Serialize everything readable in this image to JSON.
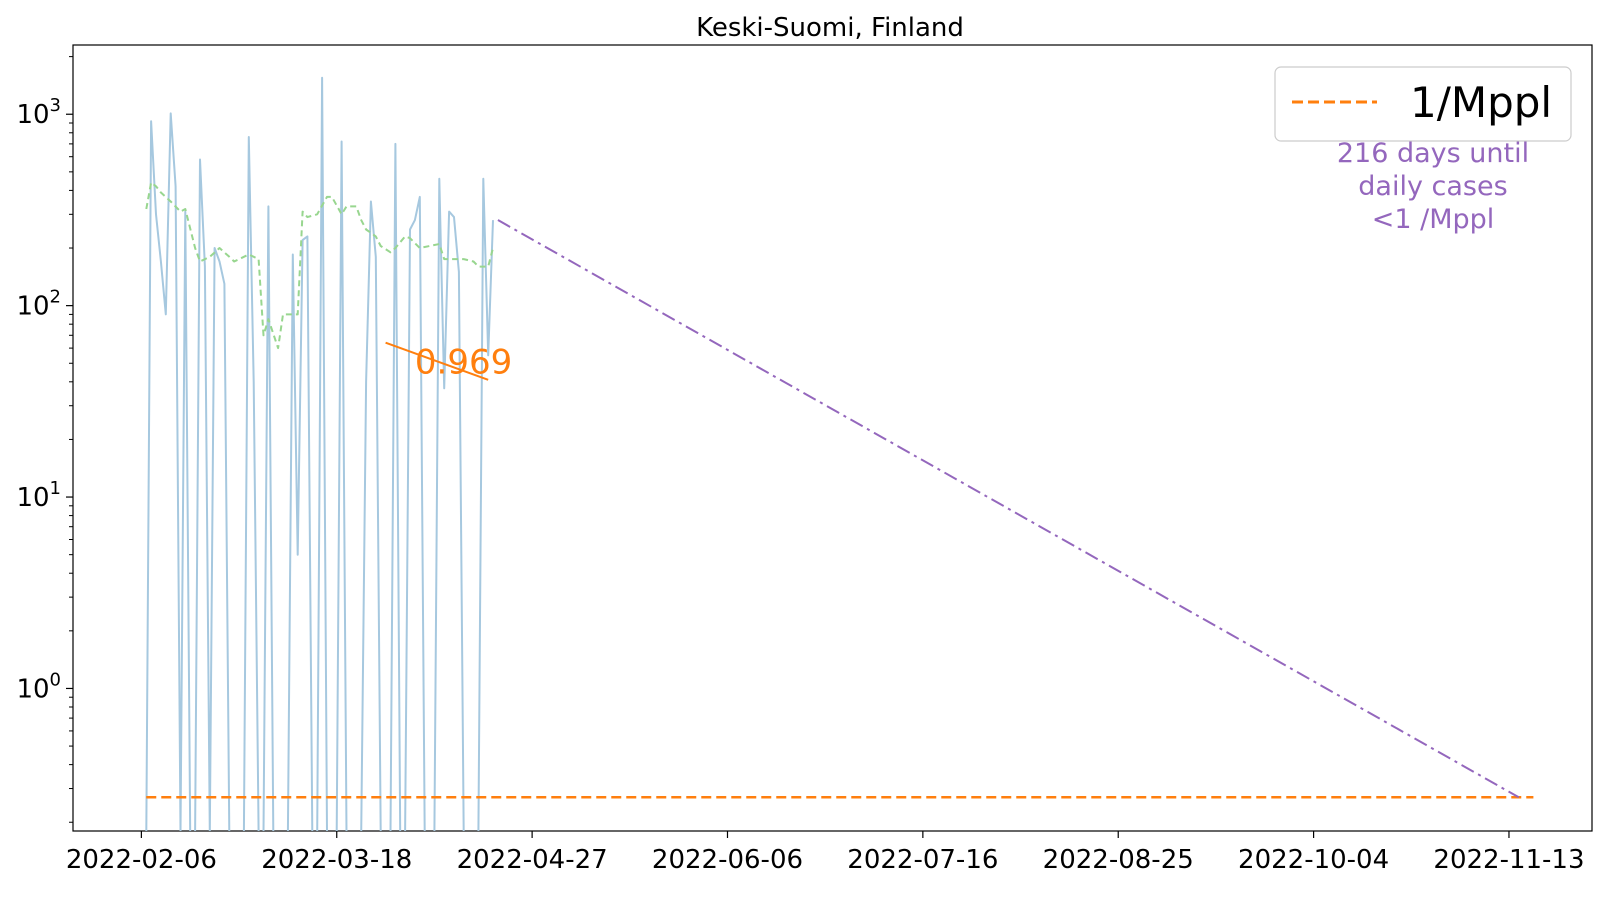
{
  "chart_data": {
    "type": "line",
    "title": "Keski-Suomi, Finland",
    "xlabel": "",
    "ylabel": "",
    "x_scale": "date",
    "y_scale": "log",
    "xlim": [
      "2022-01-23",
      "2022-11-30"
    ],
    "ylim": [
      0.18,
      2300
    ],
    "x_ticks": [
      "2022-02-06",
      "2022-03-18",
      "2022-04-27",
      "2022-06-06",
      "2022-07-16",
      "2022-08-25",
      "2022-10-04",
      "2022-11-13"
    ],
    "y_ticks": [
      {
        "value": 1,
        "base": "10",
        "exp": "0"
      },
      {
        "value": 10,
        "base": "10",
        "exp": "1"
      },
      {
        "value": 100,
        "base": "10",
        "exp": "2"
      },
      {
        "value": 1000,
        "base": "10",
        "exp": "3"
      }
    ],
    "grid": false,
    "legend": {
      "position": "top-right",
      "entries": [
        {
          "label": "1/Mppl",
          "color": "#ff7f0e",
          "dash": "dashed"
        }
      ]
    },
    "series": [
      {
        "kind": "daily",
        "color": "#a6c8df",
        "points": [
          [
            "2022-02-07",
            0.15
          ],
          [
            "2022-02-08",
            920
          ],
          [
            "2022-02-09",
            300
          ],
          [
            "2022-02-10",
            170
          ],
          [
            "2022-02-11",
            90
          ],
          [
            "2022-02-12",
            1010
          ],
          [
            "2022-02-13",
            420
          ],
          [
            "2022-02-14",
            0.15
          ],
          [
            "2022-02-15",
            310
          ],
          [
            "2022-02-16",
            0.15
          ],
          [
            "2022-02-17",
            0.15
          ],
          [
            "2022-02-18",
            580
          ],
          [
            "2022-02-19",
            160
          ],
          [
            "2022-02-20",
            0.15
          ],
          [
            "2022-02-21",
            200
          ],
          [
            "2022-02-22",
            170
          ],
          [
            "2022-02-23",
            130
          ],
          [
            "2022-02-24",
            0.15
          ],
          [
            "2022-02-25",
            0.15
          ],
          [
            "2022-02-26",
            0.15
          ],
          [
            "2022-02-27",
            0.15
          ],
          [
            "2022-02-28",
            760
          ],
          [
            "2022-03-01",
            40
          ],
          [
            "2022-03-02",
            0.15
          ],
          [
            "2022-03-03",
            0.15
          ],
          [
            "2022-03-04",
            330
          ],
          [
            "2022-03-05",
            0.15
          ],
          [
            "2022-03-06",
            0.15
          ],
          [
            "2022-03-07",
            0.15
          ],
          [
            "2022-03-08",
            0.15
          ],
          [
            "2022-03-09",
            185
          ],
          [
            "2022-03-10",
            5
          ],
          [
            "2022-03-11",
            220
          ],
          [
            "2022-03-12",
            230
          ],
          [
            "2022-03-13",
            0.15
          ],
          [
            "2022-03-14",
            0.15
          ],
          [
            "2022-03-15",
            1550
          ],
          [
            "2022-03-16",
            0.15
          ],
          [
            "2022-03-17",
            0.15
          ],
          [
            "2022-03-18",
            0.15
          ],
          [
            "2022-03-19",
            720
          ],
          [
            "2022-03-20",
            0.15
          ],
          [
            "2022-03-21",
            0.15
          ],
          [
            "2022-03-22",
            0.15
          ],
          [
            "2022-03-23",
            0.15
          ],
          [
            "2022-03-24",
            40
          ],
          [
            "2022-03-25",
            350
          ],
          [
            "2022-03-26",
            180
          ],
          [
            "2022-03-27",
            0.15
          ],
          [
            "2022-03-28",
            0.15
          ],
          [
            "2022-03-29",
            0.15
          ],
          [
            "2022-03-30",
            700
          ],
          [
            "2022-03-31",
            0.15
          ],
          [
            "2022-04-01",
            0.15
          ],
          [
            "2022-04-02",
            250
          ],
          [
            "2022-04-03",
            280
          ],
          [
            "2022-04-04",
            370
          ],
          [
            "2022-04-05",
            0.15
          ],
          [
            "2022-04-06",
            0.15
          ],
          [
            "2022-04-07",
            0.15
          ],
          [
            "2022-04-08",
            460
          ],
          [
            "2022-04-09",
            37
          ],
          [
            "2022-04-10",
            310
          ],
          [
            "2022-04-11",
            290
          ],
          [
            "2022-04-12",
            150
          ],
          [
            "2022-04-13",
            0.15
          ],
          [
            "2022-04-14",
            0.15
          ],
          [
            "2022-04-15",
            0.15
          ],
          [
            "2022-04-16",
            0.15
          ],
          [
            "2022-04-17",
            460
          ],
          [
            "2022-04-18",
            55
          ],
          [
            "2022-04-19",
            280
          ]
        ]
      },
      {
        "kind": "rolling-average",
        "color": "#98d68f",
        "points": [
          [
            "2022-02-07",
            320
          ],
          [
            "2022-02-08",
            440
          ],
          [
            "2022-02-09",
            420
          ],
          [
            "2022-02-10",
            390
          ],
          [
            "2022-02-12",
            350
          ],
          [
            "2022-02-14",
            310
          ],
          [
            "2022-02-15",
            320
          ],
          [
            "2022-02-17",
            200
          ],
          [
            "2022-02-18",
            170
          ],
          [
            "2022-02-20",
            180
          ],
          [
            "2022-02-22",
            200
          ],
          [
            "2022-02-24",
            180
          ],
          [
            "2022-02-25",
            170
          ],
          [
            "2022-02-27",
            180
          ],
          [
            "2022-02-28",
            185
          ],
          [
            "2022-03-02",
            175
          ],
          [
            "2022-03-03",
            70
          ],
          [
            "2022-03-04",
            85
          ],
          [
            "2022-03-06",
            60
          ],
          [
            "2022-03-07",
            90
          ],
          [
            "2022-03-09",
            90
          ],
          [
            "2022-03-10",
            90
          ],
          [
            "2022-03-11",
            310
          ],
          [
            "2022-03-12",
            290
          ],
          [
            "2022-03-14",
            300
          ],
          [
            "2022-03-16",
            370
          ],
          [
            "2022-03-17",
            370
          ],
          [
            "2022-03-19",
            300
          ],
          [
            "2022-03-20",
            330
          ],
          [
            "2022-03-22",
            330
          ],
          [
            "2022-03-23",
            280
          ],
          [
            "2022-03-24",
            250
          ],
          [
            "2022-03-26",
            230
          ],
          [
            "2022-03-27",
            205
          ],
          [
            "2022-03-29",
            190
          ],
          [
            "2022-03-30",
            200
          ],
          [
            "2022-04-01",
            230
          ],
          [
            "2022-04-02",
            225
          ],
          [
            "2022-04-04",
            200
          ],
          [
            "2022-04-06",
            205
          ],
          [
            "2022-04-08",
            210
          ],
          [
            "2022-04-09",
            175
          ],
          [
            "2022-04-11",
            175
          ],
          [
            "2022-04-13",
            175
          ],
          [
            "2022-04-15",
            170
          ],
          [
            "2022-04-16",
            160
          ],
          [
            "2022-04-18",
            160
          ],
          [
            "2022-04-19",
            200
          ]
        ]
      }
    ],
    "threshold": {
      "label": "1/Mppl",
      "color": "#ff7f0e",
      "value": 0.27,
      "x_range": [
        "2022-02-07",
        "2022-11-18"
      ]
    },
    "trend_segment": {
      "color": "#ff7f0e",
      "points": [
        [
          "2022-03-28",
          64
        ],
        [
          "2022-04-18",
          41
        ]
      ],
      "label": "0.969",
      "label_at": [
        "2022-04-03",
        50
      ]
    },
    "projection": {
      "color": "#9467bd",
      "points": [
        [
          "2022-04-20",
          280
        ],
        [
          "2022-11-15",
          0.27
        ]
      ]
    },
    "projection_note": {
      "lines": [
        "216 days until",
        "daily cases",
        "<1 /Mppl"
      ],
      "color": "#9467bd"
    }
  }
}
